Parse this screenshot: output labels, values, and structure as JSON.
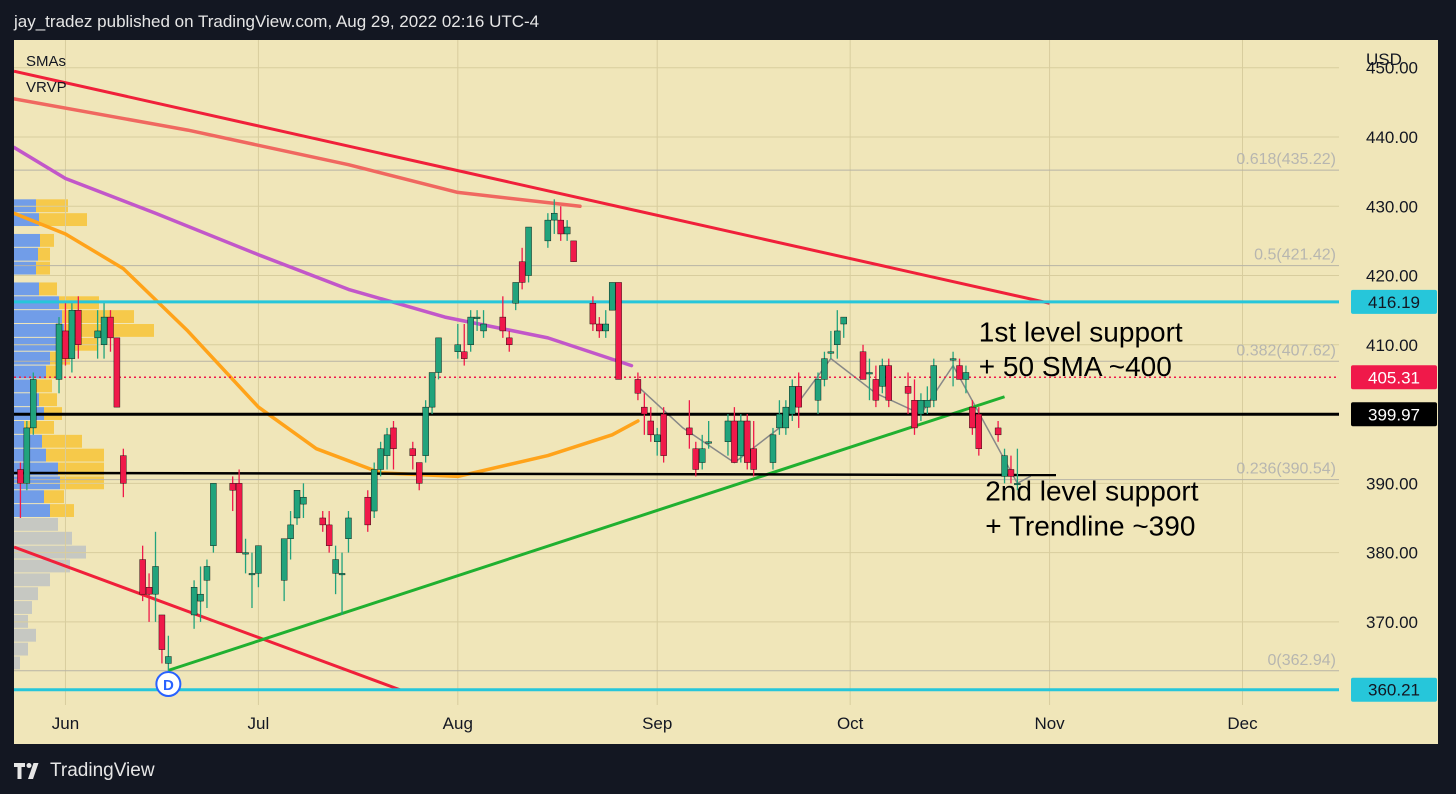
{
  "header": {
    "published": "jay_tradez published on TradingView.com, Aug 29, 2022 02:16 UTC-4"
  },
  "indicators": [
    "SMAs",
    "VRVP"
  ],
  "footer": {
    "brand": "TradingView",
    "logo_icon": "tradingview-logo-icon"
  },
  "colors": {
    "background": "#f0e6b9",
    "frame": "#131722",
    "up_candle": "#21a37c",
    "down_candle": "#f0194a",
    "sma_orange": "#ffa31a",
    "sma_purple": "#c257c9",
    "sma_salmon": "#f06860",
    "cyan_level": "#26c6da",
    "red_trendline": "#f0203a",
    "green_trendline": "#20b030"
  },
  "chart_data": {
    "type": "candlestick",
    "symbol_currency": "USD",
    "ylim": [
      358,
      454
    ],
    "y_ticks": [
      370,
      380,
      390,
      400,
      410,
      420,
      430,
      440,
      450
    ],
    "y_tick_labels": [
      "370.00",
      "380.00",
      "390.00",
      "400.00",
      "410.00",
      "420.00",
      "430.00",
      "440.00",
      "450.00"
    ],
    "x_ticks": [
      "Jun",
      "Jul",
      "Aug",
      "Sep",
      "Oct",
      "Nov",
      "Dec"
    ],
    "x_tick_dates": [
      "2022-06-01",
      "2022-07-01",
      "2022-08-01",
      "2022-09-01",
      "2022-10-01",
      "2022-11-01",
      "2022-12-01"
    ],
    "xlim": [
      "2022-05-24",
      "2022-12-16"
    ],
    "candles": [
      {
        "d": "2022-05-25",
        "o": 392,
        "h": 393,
        "l": 385,
        "c": 390
      },
      {
        "d": "2022-05-26",
        "o": 390,
        "h": 399,
        "l": 389,
        "c": 398
      },
      {
        "d": "2022-05-27",
        "o": 398,
        "h": 406,
        "l": 397,
        "c": 405
      },
      {
        "d": "2022-05-31",
        "o": 405,
        "h": 414,
        "l": 403,
        "c": 413
      },
      {
        "d": "2022-06-01",
        "o": 412,
        "h": 416,
        "l": 407,
        "c": 408
      },
      {
        "d": "2022-06-02",
        "o": 408,
        "h": 416,
        "l": 406,
        "c": 415
      },
      {
        "d": "2022-06-03",
        "o": 415,
        "h": 417,
        "l": 408,
        "c": 410
      },
      {
        "d": "2022-06-06",
        "o": 411,
        "h": 415,
        "l": 408,
        "c": 412
      },
      {
        "d": "2022-06-07",
        "o": 410,
        "h": 416,
        "l": 408,
        "c": 414
      },
      {
        "d": "2022-06-08",
        "o": 414,
        "h": 415,
        "l": 409,
        "c": 411
      },
      {
        "d": "2022-06-09",
        "o": 411,
        "h": 411,
        "l": 401,
        "c": 401
      },
      {
        "d": "2022-06-10",
        "o": 394,
        "h": 395,
        "l": 388,
        "c": 390
      },
      {
        "d": "2022-06-13",
        "o": 379,
        "h": 381,
        "l": 373,
        "c": 374
      },
      {
        "d": "2022-06-14",
        "o": 375,
        "h": 377,
        "l": 370,
        "c": 374
      },
      {
        "d": "2022-06-15",
        "o": 374,
        "h": 383,
        "l": 370,
        "c": 378
      },
      {
        "d": "2022-06-16",
        "o": 371,
        "h": 371,
        "l": 364,
        "c": 366
      },
      {
        "d": "2022-06-17",
        "o": 364,
        "h": 368,
        "l": 362,
        "c": 365
      },
      {
        "d": "2022-06-21",
        "o": 371,
        "h": 376,
        "l": 369,
        "c": 375
      },
      {
        "d": "2022-06-22",
        "o": 373,
        "h": 378,
        "l": 370,
        "c": 374
      },
      {
        "d": "2022-06-23",
        "o": 376,
        "h": 379,
        "l": 372,
        "c": 378
      },
      {
        "d": "2022-06-24",
        "o": 381,
        "h": 390,
        "l": 380,
        "c": 390
      },
      {
        "d": "2022-06-27",
        "o": 390,
        "h": 391,
        "l": 386,
        "c": 389
      },
      {
        "d": "2022-06-28",
        "o": 390,
        "h": 392,
        "l": 380,
        "c": 380
      },
      {
        "d": "2022-06-29",
        "o": 380,
        "h": 382,
        "l": 377,
        "c": 380
      },
      {
        "d": "2022-06-30",
        "o": 377,
        "h": 380,
        "l": 372,
        "c": 377
      },
      {
        "d": "2022-07-01",
        "o": 377,
        "h": 381,
        "l": 375,
        "c": 381
      },
      {
        "d": "2022-07-05",
        "o": 376,
        "h": 382,
        "l": 373,
        "c": 382
      },
      {
        "d": "2022-07-06",
        "o": 382,
        "h": 386,
        "l": 379,
        "c": 384
      },
      {
        "d": "2022-07-07",
        "o": 385,
        "h": 389,
        "l": 384,
        "c": 389
      },
      {
        "d": "2022-07-08",
        "o": 387,
        "h": 390,
        "l": 385,
        "c": 388
      },
      {
        "d": "2022-07-11",
        "o": 385,
        "h": 386,
        "l": 383,
        "c": 384
      },
      {
        "d": "2022-07-12",
        "o": 384,
        "h": 386,
        "l": 380,
        "c": 381
      },
      {
        "d": "2022-07-13",
        "o": 377,
        "h": 381,
        "l": 374,
        "c": 379
      },
      {
        "d": "2022-07-14",
        "o": 377,
        "h": 380,
        "l": 371,
        "c": 377
      },
      {
        "d": "2022-07-15",
        "o": 382,
        "h": 386,
        "l": 380,
        "c": 385
      },
      {
        "d": "2022-07-18",
        "o": 388,
        "h": 389,
        "l": 383,
        "c": 384
      },
      {
        "d": "2022-07-19",
        "o": 386,
        "h": 393,
        "l": 385,
        "c": 392
      },
      {
        "d": "2022-07-20",
        "o": 392,
        "h": 396,
        "l": 391,
        "c": 395
      },
      {
        "d": "2022-07-21",
        "o": 394,
        "h": 398,
        "l": 392,
        "c": 397
      },
      {
        "d": "2022-07-22",
        "o": 398,
        "h": 399,
        "l": 392,
        "c": 395
      },
      {
        "d": "2022-07-25",
        "o": 395,
        "h": 396,
        "l": 392,
        "c": 394
      },
      {
        "d": "2022-07-26",
        "o": 393,
        "h": 393,
        "l": 389,
        "c": 390
      },
      {
        "d": "2022-07-27",
        "o": 394,
        "h": 402,
        "l": 393,
        "c": 401
      },
      {
        "d": "2022-07-28",
        "o": 401,
        "h": 406,
        "l": 400,
        "c": 406
      },
      {
        "d": "2022-07-29",
        "o": 406,
        "h": 411,
        "l": 405,
        "c": 411
      },
      {
        "d": "2022-08-01",
        "o": 409,
        "h": 413,
        "l": 408,
        "c": 410
      },
      {
        "d": "2022-08-02",
        "o": 409,
        "h": 413,
        "l": 407,
        "c": 408
      },
      {
        "d": "2022-08-03",
        "o": 410,
        "h": 415,
        "l": 409,
        "c": 414
      },
      {
        "d": "2022-08-04",
        "o": 414,
        "h": 415,
        "l": 412,
        "c": 414
      },
      {
        "d": "2022-08-05",
        "o": 412,
        "h": 415,
        "l": 411,
        "c": 413
      },
      {
        "d": "2022-08-08",
        "o": 414,
        "h": 417,
        "l": 411,
        "c": 412
      },
      {
        "d": "2022-08-09",
        "o": 411,
        "h": 412,
        "l": 409,
        "c": 410
      },
      {
        "d": "2022-08-10",
        "o": 416,
        "h": 419,
        "l": 415,
        "c": 419
      },
      {
        "d": "2022-08-11",
        "o": 422,
        "h": 424,
        "l": 418,
        "c": 419
      },
      {
        "d": "2022-08-12",
        "o": 420,
        "h": 427,
        "l": 419,
        "c": 427
      },
      {
        "d": "2022-08-15",
        "o": 425,
        "h": 429,
        "l": 424,
        "c": 428
      },
      {
        "d": "2022-08-16",
        "o": 428,
        "h": 431,
        "l": 426,
        "c": 429
      },
      {
        "d": "2022-08-17",
        "o": 428,
        "h": 430,
        "l": 425,
        "c": 426
      },
      {
        "d": "2022-08-18",
        "o": 426,
        "h": 428,
        "l": 425,
        "c": 427
      },
      {
        "d": "2022-08-19",
        "o": 425,
        "h": 425,
        "l": 422,
        "c": 422
      },
      {
        "d": "2022-08-22",
        "o": 416,
        "h": 417,
        "l": 412,
        "c": 413
      },
      {
        "d": "2022-08-23",
        "o": 413,
        "h": 414,
        "l": 411,
        "c": 412
      },
      {
        "d": "2022-08-24",
        "o": 412,
        "h": 415,
        "l": 411,
        "c": 413
      },
      {
        "d": "2022-08-25",
        "o": 415,
        "h": 419,
        "l": 415,
        "c": 419
      },
      {
        "d": "2022-08-26",
        "o": 419,
        "h": 419,
        "l": 405,
        "c": 405
      },
      {
        "d": "2022-08-29",
        "o": 405,
        "h": 406,
        "l": 402,
        "c": 403
      },
      {
        "d": "2022-08-30",
        "o": 401,
        "h": 403,
        "l": 397,
        "c": 400
      },
      {
        "d": "2022-08-31",
        "o": 399,
        "h": 401,
        "l": 396,
        "c": 397
      },
      {
        "d": "2022-09-01",
        "o": 396,
        "h": 398,
        "l": 394,
        "c": 397
      },
      {
        "d": "2022-09-02",
        "o": 400,
        "h": 401,
        "l": 393,
        "c": 394
      },
      {
        "d": "2022-09-06",
        "o": 398,
        "h": 402,
        "l": 395,
        "c": 397
      },
      {
        "d": "2022-09-07",
        "o": 395,
        "h": 396,
        "l": 391,
        "c": 392
      },
      {
        "d": "2022-09-08",
        "o": 393,
        "h": 397,
        "l": 392,
        "c": 395
      },
      {
        "d": "2022-09-09",
        "o": 396,
        "h": 399,
        "l": 395,
        "c": 396
      },
      {
        "d": "2022-09-12",
        "o": 396,
        "h": 400,
        "l": 394,
        "c": 399
      },
      {
        "d": "2022-09-13",
        "o": 399,
        "h": 401,
        "l": 393,
        "c": 393
      },
      {
        "d": "2022-09-14",
        "o": 394,
        "h": 400,
        "l": 393,
        "c": 399
      },
      {
        "d": "2022-09-15",
        "o": 399,
        "h": 400,
        "l": 392,
        "c": 393
      },
      {
        "d": "2022-09-16",
        "o": 395,
        "h": 399,
        "l": 391,
        "c": 392
      },
      {
        "d": "2022-09-19",
        "o": 393,
        "h": 398,
        "l": 392,
        "c": 397
      },
      {
        "d": "2022-09-20",
        "o": 398,
        "h": 402,
        "l": 397,
        "c": 400
      },
      {
        "d": "2022-09-21",
        "o": 398,
        "h": 402,
        "l": 397,
        "c": 401
      },
      {
        "d": "2022-09-22",
        "o": 400,
        "h": 405,
        "l": 399,
        "c": 404
      },
      {
        "d": "2022-09-23",
        "o": 404,
        "h": 406,
        "l": 398,
        "c": 401
      },
      {
        "d": "2022-09-26",
        "o": 402,
        "h": 406,
        "l": 400,
        "c": 405
      },
      {
        "d": "2022-09-27",
        "o": 405,
        "h": 409,
        "l": 404,
        "c": 408
      },
      {
        "d": "2022-09-28",
        "o": 409,
        "h": 412,
        "l": 408,
        "c": 409
      },
      {
        "d": "2022-09-29",
        "o": 410,
        "h": 415,
        "l": 408,
        "c": 412
      },
      {
        "d": "2022-09-30",
        "o": 413,
        "h": 414,
        "l": 411,
        "c": 414
      },
      {
        "d": "2022-10-03",
        "o": 409,
        "h": 410,
        "l": 405,
        "c": 405
      },
      {
        "d": "2022-10-04",
        "o": 406,
        "h": 408,
        "l": 402,
        "c": 406
      },
      {
        "d": "2022-10-05",
        "o": 405,
        "h": 407,
        "l": 401,
        "c": 402
      },
      {
        "d": "2022-10-06",
        "o": 404,
        "h": 408,
        "l": 403,
        "c": 407
      },
      {
        "d": "2022-10-07",
        "o": 407,
        "h": 408,
        "l": 401,
        "c": 402
      },
      {
        "d": "2022-10-10",
        "o": 404,
        "h": 406,
        "l": 400,
        "c": 403
      },
      {
        "d": "2022-10-11",
        "o": 402,
        "h": 405,
        "l": 397,
        "c": 398
      },
      {
        "d": "2022-10-12",
        "o": 400,
        "h": 403,
        "l": 399,
        "c": 402
      },
      {
        "d": "2022-10-13",
        "o": 401,
        "h": 404,
        "l": 400,
        "c": 402
      },
      {
        "d": "2022-10-14",
        "o": 402,
        "h": 408,
        "l": 401,
        "c": 407
      },
      {
        "d": "2022-10-17",
        "o": 408,
        "h": 409,
        "l": 404,
        "c": 408
      },
      {
        "d": "2022-10-18",
        "o": 407,
        "h": 408,
        "l": 405,
        "c": 405
      },
      {
        "d": "2022-10-19",
        "o": 405,
        "h": 407,
        "l": 403,
        "c": 406
      },
      {
        "d": "2022-10-20",
        "o": 401,
        "h": 402,
        "l": 397,
        "c": 398
      },
      {
        "d": "2022-10-21",
        "o": 400,
        "h": 401,
        "l": 394,
        "c": 395
      },
      {
        "d": "2022-10-24",
        "o": 398,
        "h": 399,
        "l": 396,
        "c": 397
      },
      {
        "d": "2022-10-25",
        "o": 391,
        "h": 395,
        "l": 390,
        "c": 394
      },
      {
        "d": "2022-10-26",
        "o": 392,
        "h": 394,
        "l": 390,
        "c": 391
      },
      {
        "d": "2022-10-27",
        "o": 390,
        "h": 395,
        "l": 389,
        "c": 390
      }
    ],
    "sma_lines": [
      {
        "color": "#f06860",
        "points": [
          [
            "2022-05-24",
            445.5
          ],
          [
            "2022-06-20",
            441
          ],
          [
            "2022-07-15",
            436
          ],
          [
            "2022-08-01",
            432
          ],
          [
            "2022-08-20",
            430
          ]
        ]
      },
      {
        "color": "#c257c9",
        "points": [
          [
            "2022-05-24",
            438.5
          ],
          [
            "2022-06-01",
            434
          ],
          [
            "2022-06-15",
            429
          ],
          [
            "2022-07-01",
            423
          ],
          [
            "2022-07-15",
            418
          ],
          [
            "2022-07-30",
            414
          ],
          [
            "2022-08-15",
            411
          ],
          [
            "2022-08-28",
            407
          ]
        ]
      },
      {
        "color": "#ffa31a",
        "points": [
          [
            "2022-05-24",
            429
          ],
          [
            "2022-06-01",
            426
          ],
          [
            "2022-06-10",
            421
          ],
          [
            "2022-06-20",
            412
          ],
          [
            "2022-07-01",
            401
          ],
          [
            "2022-07-10",
            395
          ],
          [
            "2022-07-20",
            391.5
          ],
          [
            "2022-08-01",
            391
          ],
          [
            "2022-08-15",
            394
          ],
          [
            "2022-08-25",
            397
          ],
          [
            "2022-08-29",
            399
          ]
        ]
      },
      {
        "color": "#888888",
        "points": [
          [
            "2022-08-29",
            404
          ],
          [
            "2022-09-05",
            398
          ],
          [
            "2022-09-13",
            393
          ],
          [
            "2022-09-20",
            398
          ],
          [
            "2022-09-28",
            408
          ],
          [
            "2022-10-05",
            403
          ],
          [
            "2022-10-12",
            400
          ],
          [
            "2022-10-17",
            407
          ],
          [
            "2022-10-27",
            390
          ],
          [
            "2022-10-29",
            391
          ]
        ]
      }
    ],
    "horizontal_levels": [
      {
        "value": 416.19,
        "color": "#26c6da",
        "label": "416.19",
        "width": 3
      },
      {
        "value": 360.21,
        "color": "#26c6da",
        "label": "360.21",
        "width": 3
      },
      {
        "value": 399.97,
        "color": "#000000",
        "label": "399.97",
        "width": 3
      },
      {
        "value": 405.31,
        "color": "#f0194a",
        "label": "405.31",
        "dotted": true
      }
    ],
    "fib_levels": [
      {
        "label": "0.618(435.22)",
        "value": 435.22
      },
      {
        "label": "0.5(421.42)",
        "value": 421.42
      },
      {
        "label": "0.382(407.62)",
        "value": 407.62
      },
      {
        "label": "0.236(390.54)",
        "value": 390.54
      },
      {
        "label": "0(362.94)",
        "value": 362.94
      }
    ],
    "trendlines": [
      {
        "color": "#f0203a",
        "from": [
          "2022-05-24",
          449.5
        ],
        "to": [
          "2022-11-01",
          416
        ]
      },
      {
        "color": "#f0203a",
        "from": [
          "2022-05-24",
          380.8
        ],
        "to": [
          "2022-07-23",
          360.2
        ]
      },
      {
        "color": "#20b030",
        "from": [
          "2022-06-17",
          363
        ],
        "to": [
          "2022-10-25",
          402.5
        ]
      },
      {
        "color": "#000000",
        "from": [
          "2022-05-24",
          391.5
        ],
        "to": [
          "2022-11-02",
          391.2
        ]
      }
    ],
    "annotations": [
      {
        "text": "1st level support",
        "x": "2022-10-21",
        "y": 410.5
      },
      {
        "text": "+ 50 SMA ~400",
        "x": "2022-10-21",
        "y": 405.5
      },
      {
        "text": "2nd level support",
        "x": "2022-10-22",
        "y": 387.5
      },
      {
        "text": "+ Trendline ~390",
        "x": "2022-10-22",
        "y": 382.5
      }
    ],
    "dividend_marker": {
      "label": "D",
      "x": "2022-06-17"
    },
    "volume_profile_note": "VRVP histogram on left edge"
  }
}
